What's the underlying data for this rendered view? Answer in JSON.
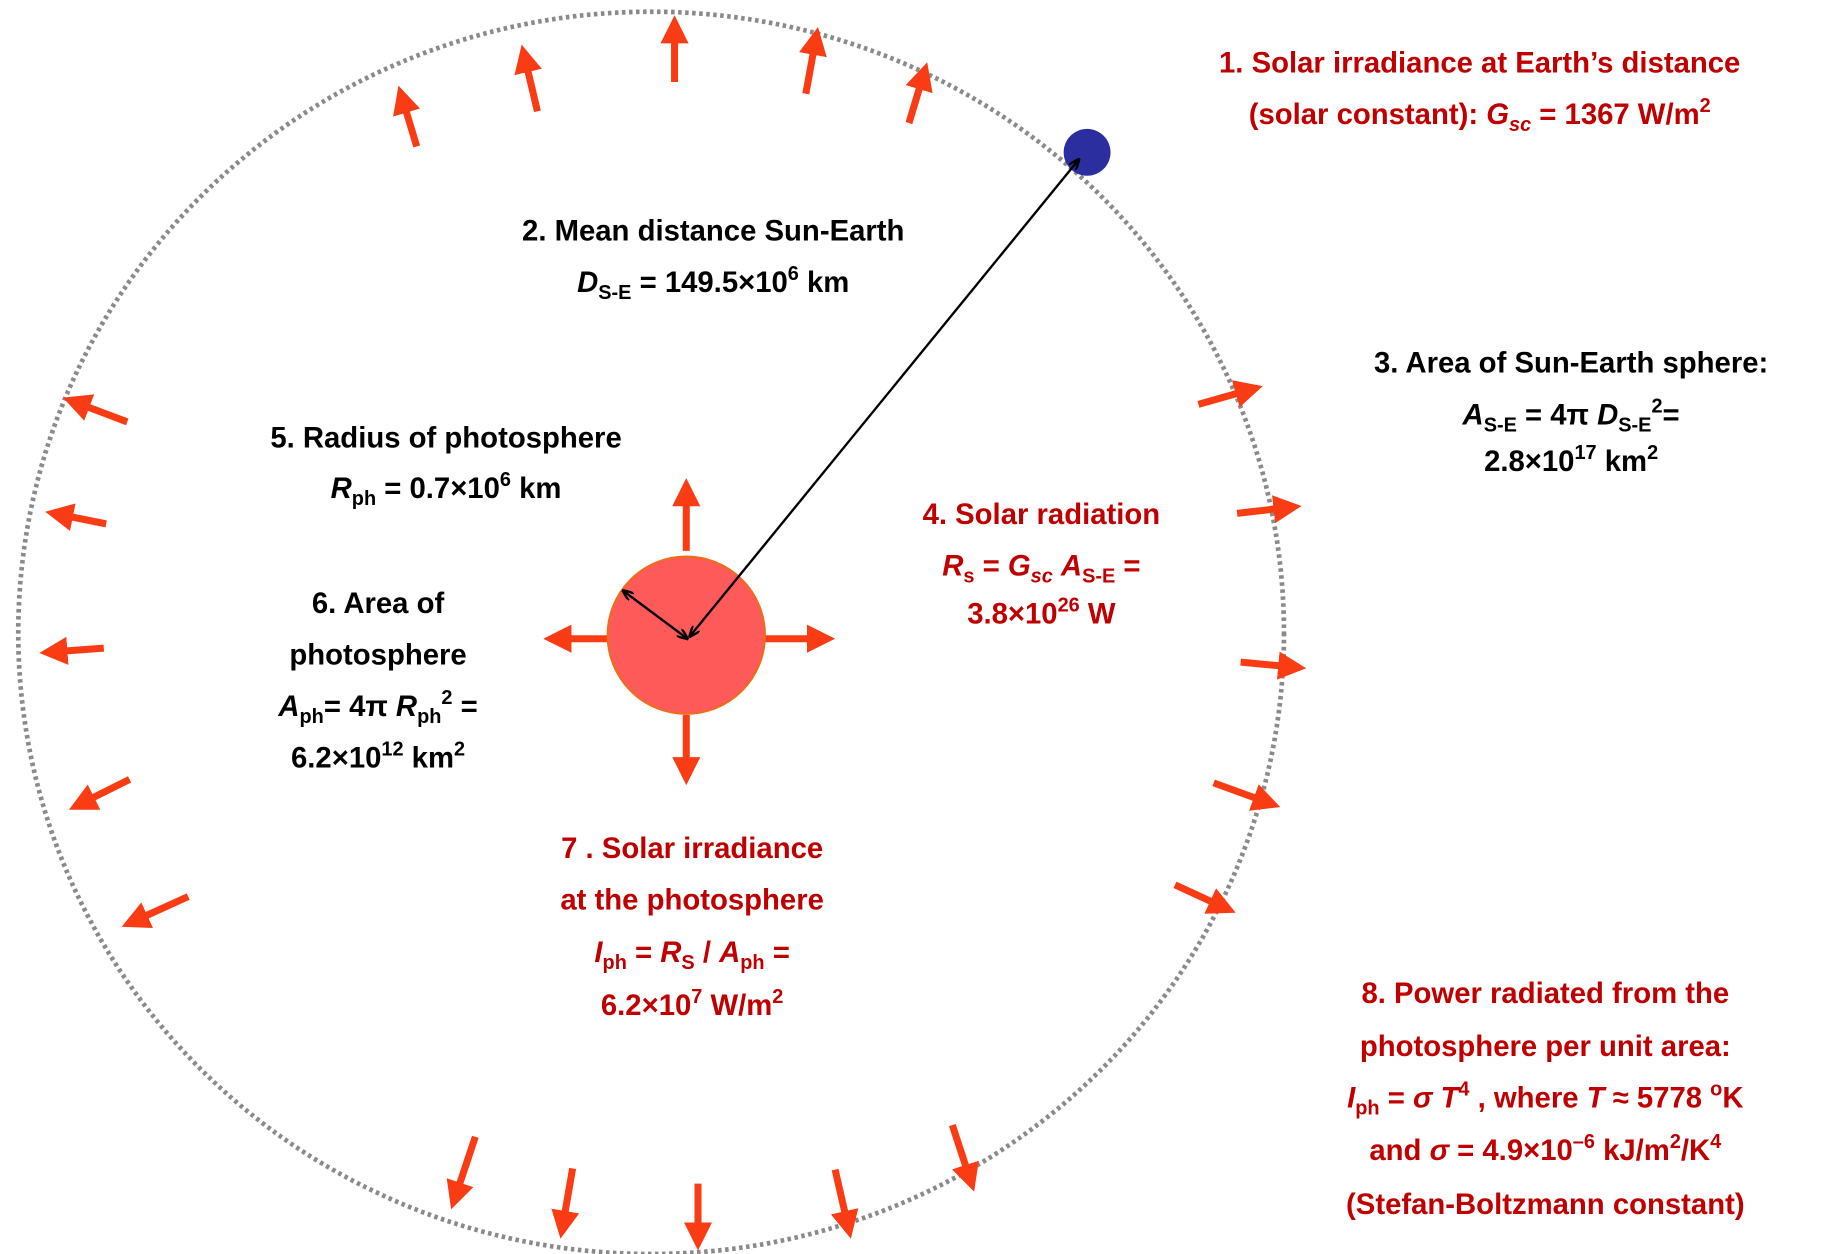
{
  "notes": [
    {
      "lines": [
        [
          "1. Solar irradiance at Earth’s distance"
        ],
        [
          "(solar constant): ",
          "G",
          "sc",
          " = 1367 W/m",
          "2"
        ]
      ]
    },
    {
      "lines": [
        [
          "2. Mean distance Sun-Earth"
        ],
        [
          "D",
          "S-E",
          " = 149.5×10",
          "6",
          " km"
        ]
      ]
    },
    {
      "lines": [
        [
          "3. Area of Sun-Earth sphere:"
        ],
        [
          "A",
          "S-E",
          " = 4π ",
          "D",
          "S-E",
          "2",
          "="
        ],
        [
          "2.8×10",
          "17",
          " km",
          "2"
        ]
      ]
    },
    {
      "lines": [
        [
          "4. Solar radiation"
        ],
        [
          "R",
          "s",
          " = ",
          "G",
          "sc",
          " ",
          "A",
          "S-E",
          " ="
        ],
        [
          "3.8×10",
          "26",
          " W"
        ]
      ]
    },
    {
      "lines": [
        [
          "5. Radius of photosphere"
        ],
        [
          "R",
          "ph",
          " = 0.7×10",
          "6",
          " km"
        ]
      ]
    },
    {
      "lines": [
        [
          "6. Area of"
        ],
        [
          "photosphere"
        ],
        [
          "A",
          "ph",
          "= 4π ",
          "R",
          "ph",
          "2",
          " ="
        ],
        [
          "6.2×10",
          "12",
          " km",
          "2"
        ]
      ]
    },
    {
      "lines": [
        [
          "7 . Solar irradiance"
        ],
        [
          "at the photosphere"
        ],
        [
          "I",
          "ph",
          " = ",
          "R",
          "S",
          " / ",
          "A",
          "ph",
          " ="
        ],
        [
          "6.2×10",
          "7",
          " W/m",
          "2"
        ]
      ]
    },
    {
      "lines": [
        [
          "8. Power radiated from the"
        ],
        [
          "photosphere per unit area:"
        ],
        [
          "I",
          "ph",
          " = ",
          "σ T",
          "4",
          " , where ",
          "T",
          " ≈ 5778 ",
          "o",
          "K"
        ],
        [
          "and ",
          "σ",
          " = 4.9×10",
          "–6",
          " kJ/m",
          "2",
          "/K",
          "4"
        ],
        [
          "(Stefan-Boltzmann constant)"
        ]
      ]
    }
  ]
}
